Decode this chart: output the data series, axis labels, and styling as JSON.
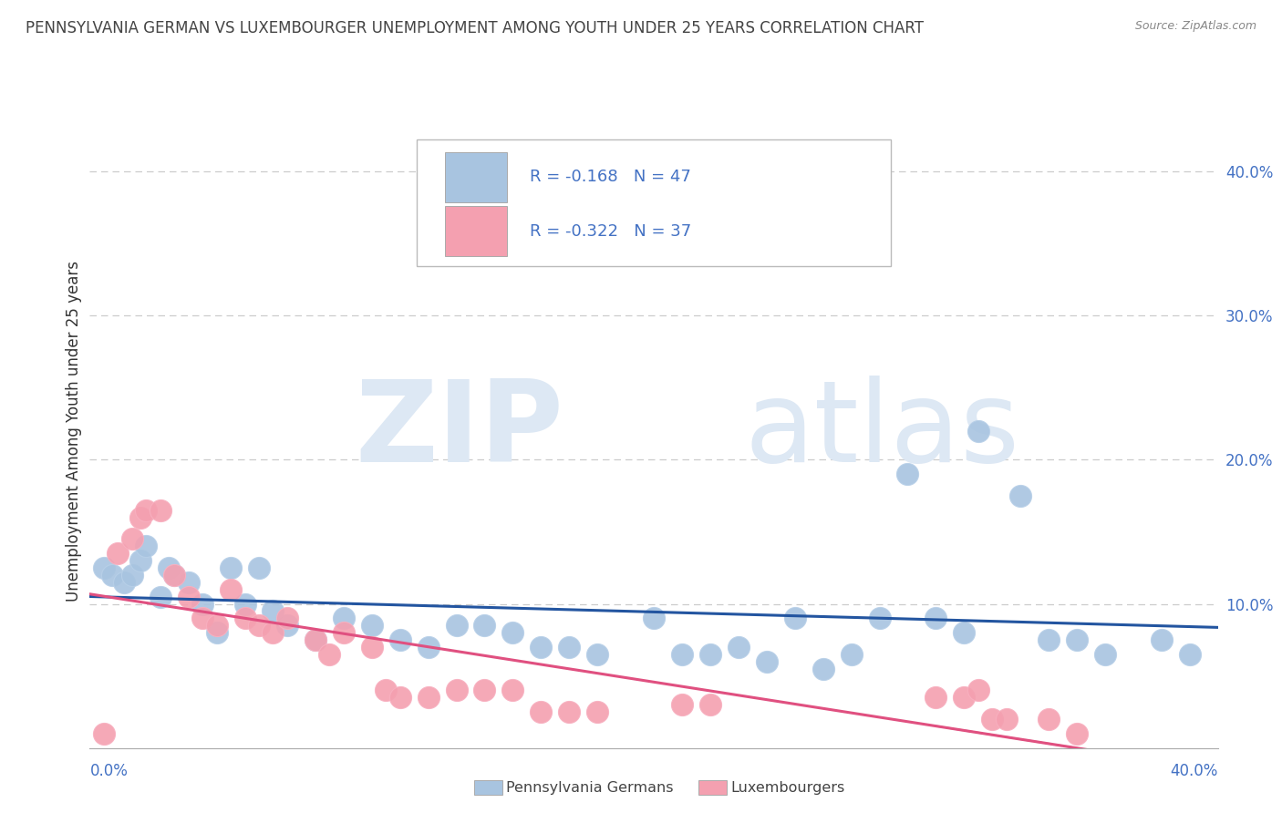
{
  "title": "PENNSYLVANIA GERMAN VS LUXEMBOURGER UNEMPLOYMENT AMONG YOUTH UNDER 25 YEARS CORRELATION CHART",
  "source": "Source: ZipAtlas.com",
  "ylabel": "Unemployment Among Youth under 25 years",
  "xlim": [
    0.0,
    0.4
  ],
  "ylim": [
    0.0,
    0.44
  ],
  "ytick_values": [
    0.1,
    0.2,
    0.3,
    0.4
  ],
  "ytick_labels": [
    "10.0%",
    "20.0%",
    "30.0%",
    "40.0%"
  ],
  "legend_blue_r": "-0.168",
  "legend_blue_n": "47",
  "legend_pink_r": "-0.322",
  "legend_pink_n": "37",
  "blue_scatter": [
    [
      0.005,
      0.125
    ],
    [
      0.008,
      0.12
    ],
    [
      0.012,
      0.115
    ],
    [
      0.015,
      0.12
    ],
    [
      0.018,
      0.13
    ],
    [
      0.02,
      0.14
    ],
    [
      0.025,
      0.105
    ],
    [
      0.028,
      0.125
    ],
    [
      0.03,
      0.12
    ],
    [
      0.035,
      0.115
    ],
    [
      0.04,
      0.1
    ],
    [
      0.045,
      0.08
    ],
    [
      0.05,
      0.125
    ],
    [
      0.055,
      0.1
    ],
    [
      0.06,
      0.125
    ],
    [
      0.065,
      0.095
    ],
    [
      0.07,
      0.085
    ],
    [
      0.08,
      0.075
    ],
    [
      0.09,
      0.09
    ],
    [
      0.1,
      0.085
    ],
    [
      0.11,
      0.075
    ],
    [
      0.12,
      0.07
    ],
    [
      0.13,
      0.085
    ],
    [
      0.14,
      0.085
    ],
    [
      0.15,
      0.08
    ],
    [
      0.16,
      0.07
    ],
    [
      0.17,
      0.07
    ],
    [
      0.18,
      0.065
    ],
    [
      0.2,
      0.09
    ],
    [
      0.21,
      0.065
    ],
    [
      0.22,
      0.065
    ],
    [
      0.23,
      0.07
    ],
    [
      0.24,
      0.06
    ],
    [
      0.25,
      0.09
    ],
    [
      0.26,
      0.055
    ],
    [
      0.27,
      0.065
    ],
    [
      0.28,
      0.09
    ],
    [
      0.29,
      0.19
    ],
    [
      0.3,
      0.09
    ],
    [
      0.31,
      0.08
    ],
    [
      0.315,
      0.22
    ],
    [
      0.33,
      0.175
    ],
    [
      0.34,
      0.075
    ],
    [
      0.35,
      0.075
    ],
    [
      0.36,
      0.065
    ],
    [
      0.38,
      0.075
    ],
    [
      0.39,
      0.065
    ]
  ],
  "pink_scatter": [
    [
      0.005,
      0.01
    ],
    [
      0.01,
      0.135
    ],
    [
      0.015,
      0.145
    ],
    [
      0.018,
      0.16
    ],
    [
      0.02,
      0.165
    ],
    [
      0.025,
      0.165
    ],
    [
      0.03,
      0.12
    ],
    [
      0.035,
      0.105
    ],
    [
      0.04,
      0.09
    ],
    [
      0.045,
      0.085
    ],
    [
      0.05,
      0.11
    ],
    [
      0.055,
      0.09
    ],
    [
      0.06,
      0.085
    ],
    [
      0.065,
      0.08
    ],
    [
      0.07,
      0.09
    ],
    [
      0.08,
      0.075
    ],
    [
      0.085,
      0.065
    ],
    [
      0.09,
      0.08
    ],
    [
      0.1,
      0.07
    ],
    [
      0.105,
      0.04
    ],
    [
      0.11,
      0.035
    ],
    [
      0.12,
      0.035
    ],
    [
      0.13,
      0.04
    ],
    [
      0.14,
      0.04
    ],
    [
      0.15,
      0.04
    ],
    [
      0.16,
      0.025
    ],
    [
      0.17,
      0.025
    ],
    [
      0.18,
      0.025
    ],
    [
      0.21,
      0.03
    ],
    [
      0.22,
      0.03
    ],
    [
      0.3,
      0.035
    ],
    [
      0.31,
      0.035
    ],
    [
      0.315,
      0.04
    ],
    [
      0.32,
      0.02
    ],
    [
      0.325,
      0.02
    ],
    [
      0.34,
      0.02
    ],
    [
      0.35,
      0.01
    ]
  ],
  "blue_color": "#a8c4e0",
  "pink_color": "#f4a0b0",
  "blue_line_color": "#2355a0",
  "pink_line_color": "#e05080",
  "grid_color": "#cccccc",
  "title_color": "#444444",
  "source_color": "#888888",
  "axis_label_color": "#4472C4",
  "watermark_color": "#dde8f4"
}
